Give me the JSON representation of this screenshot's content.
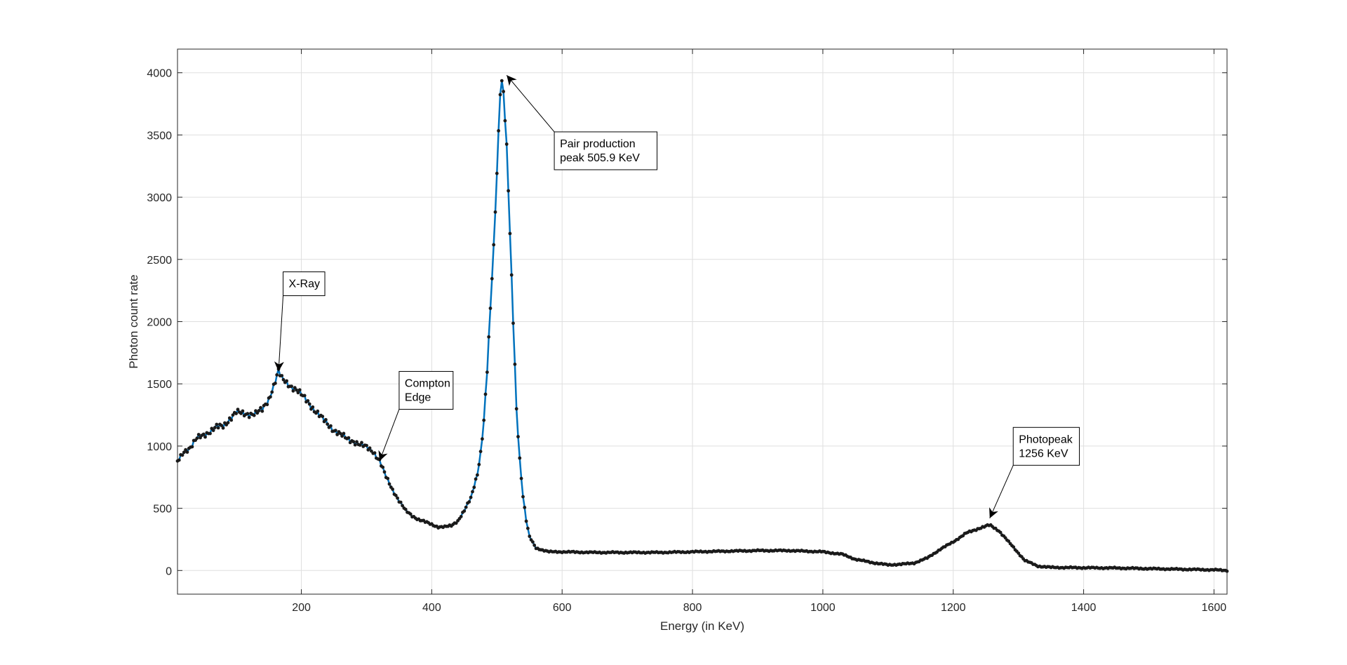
{
  "chart_data": {
    "type": "line",
    "title": "",
    "xlabel": "Energy (in KeV)",
    "ylabel": "Photon count rate",
    "xlim": [
      10,
      1620
    ],
    "ylim": [
      -190,
      4190
    ],
    "grid": true,
    "legend": "none",
    "x_ticks": [
      200,
      400,
      600,
      800,
      1000,
      1200,
      1400,
      1600
    ],
    "x_tick_labels": [
      "200",
      "400",
      "600",
      "800",
      "1000",
      "1200",
      "1400",
      "1600"
    ],
    "y_ticks": [
      0,
      500,
      1000,
      1500,
      2000,
      2500,
      3000,
      3500,
      4000
    ],
    "y_tick_labels": [
      "0",
      "500",
      "1000",
      "1500",
      "2000",
      "2500",
      "3000",
      "3500",
      "4000"
    ],
    "colors": {
      "line": "#0072BD",
      "marker": "#1a1a1a",
      "grid": "#dfdfdf",
      "axis": "#262626"
    },
    "series": [
      {
        "points": [
          [
            10,
            870
          ],
          [
            20,
            960
          ],
          [
            30,
            990
          ],
          [
            40,
            1060
          ],
          [
            50,
            1090
          ],
          [
            60,
            1120
          ],
          [
            70,
            1150
          ],
          [
            80,
            1160
          ],
          [
            90,
            1220
          ],
          [
            100,
            1270
          ],
          [
            110,
            1260
          ],
          [
            120,
            1260
          ],
          [
            130,
            1260
          ],
          [
            140,
            1290
          ],
          [
            150,
            1380
          ],
          [
            160,
            1520
          ],
          [
            165,
            1600
          ],
          [
            170,
            1540
          ],
          [
            180,
            1500
          ],
          [
            190,
            1460
          ],
          [
            200,
            1410
          ],
          [
            210,
            1360
          ],
          [
            220,
            1290
          ],
          [
            230,
            1230
          ],
          [
            240,
            1180
          ],
          [
            250,
            1130
          ],
          [
            260,
            1090
          ],
          [
            270,
            1060
          ],
          [
            280,
            1040
          ],
          [
            290,
            1010
          ],
          [
            300,
            990
          ],
          [
            310,
            960
          ],
          [
            320,
            880
          ],
          [
            330,
            750
          ],
          [
            340,
            650
          ],
          [
            350,
            560
          ],
          [
            360,
            480
          ],
          [
            370,
            440
          ],
          [
            380,
            410
          ],
          [
            390,
            390
          ],
          [
            400,
            370
          ],
          [
            410,
            350
          ],
          [
            420,
            350
          ],
          [
            430,
            360
          ],
          [
            440,
            400
          ],
          [
            450,
            480
          ],
          [
            460,
            580
          ],
          [
            470,
            780
          ],
          [
            475,
            950
          ],
          [
            480,
            1200
          ],
          [
            485,
            1600
          ],
          [
            490,
            2100
          ],
          [
            495,
            2600
          ],
          [
            500,
            3200
          ],
          [
            503,
            3600
          ],
          [
            506,
            3980
          ],
          [
            510,
            3850
          ],
          [
            515,
            3400
          ],
          [
            520,
            2700
          ],
          [
            525,
            2000
          ],
          [
            530,
            1300
          ],
          [
            535,
            900
          ],
          [
            540,
            600
          ],
          [
            545,
            400
          ],
          [
            550,
            270
          ],
          [
            560,
            180
          ],
          [
            580,
            150
          ],
          [
            600,
            150
          ],
          [
            650,
            145
          ],
          [
            700,
            145
          ],
          [
            750,
            145
          ],
          [
            800,
            150
          ],
          [
            850,
            155
          ],
          [
            900,
            160
          ],
          [
            950,
            160
          ],
          [
            1000,
            150
          ],
          [
            1030,
            130
          ],
          [
            1050,
            90
          ],
          [
            1080,
            60
          ],
          [
            1100,
            45
          ],
          [
            1120,
            50
          ],
          [
            1140,
            60
          ],
          [
            1160,
            100
          ],
          [
            1180,
            170
          ],
          [
            1200,
            230
          ],
          [
            1220,
            300
          ],
          [
            1240,
            340
          ],
          [
            1256,
            365
          ],
          [
            1270,
            320
          ],
          [
            1290,
            200
          ],
          [
            1310,
            80
          ],
          [
            1330,
            35
          ],
          [
            1350,
            25
          ],
          [
            1400,
            22
          ],
          [
            1450,
            20
          ],
          [
            1500,
            15
          ],
          [
            1550,
            10
          ],
          [
            1600,
            5
          ],
          [
            1620,
            0
          ]
        ]
      }
    ],
    "annotations": [
      {
        "lines": [
          "X-Ray"
        ],
        "target": [
          165,
          1600
        ],
        "box_corner": [
          172,
          2400
        ]
      },
      {
        "lines": [
          "Compton",
          "Edge"
        ],
        "target": [
          320,
          880
        ],
        "box_corner": [
          350,
          1600
        ]
      },
      {
        "lines": [
          "Pair production",
          "peak 505.9 KeV"
        ],
        "target": [
          515,
          3980
        ],
        "box_corner": [
          588,
          3525
        ]
      },
      {
        "lines": [
          "Photopeak",
          "1256 KeV"
        ],
        "target": [
          1256,
          420
        ],
        "box_corner": [
          1292,
          1150
        ]
      }
    ]
  }
}
